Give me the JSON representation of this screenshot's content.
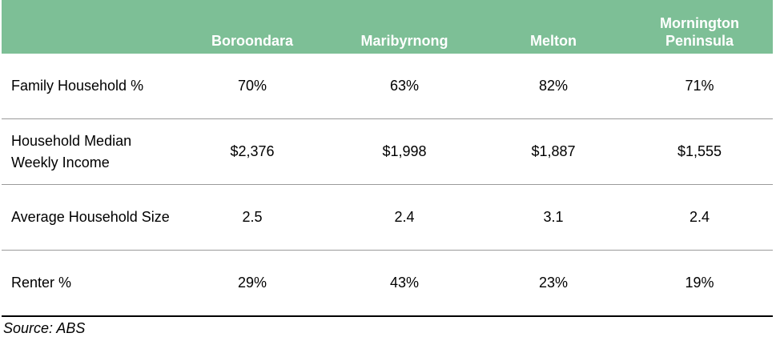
{
  "table": {
    "header": [
      "",
      "Boroondara",
      "Maribyrnong",
      "Melton",
      "Mornington Peninsula"
    ],
    "rows": [
      [
        "Family Household %",
        "70%",
        "63%",
        "82%",
        "71%"
      ],
      [
        "Household Median Weekly Income",
        "$2,376",
        "$1,998",
        "$1,887",
        "$1,555"
      ],
      [
        "Average Household Size",
        "2.5",
        "2.4",
        "3.1",
        "2.4"
      ],
      [
        "Renter %",
        "29%",
        "43%",
        "23%",
        "19%"
      ]
    ]
  },
  "source": "Source: ABS"
}
